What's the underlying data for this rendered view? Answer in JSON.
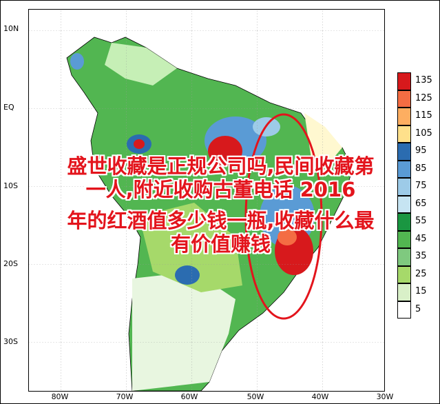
{
  "map": {
    "lat_labels": [
      "10N",
      "EQ",
      "10S",
      "20S",
      "30S"
    ],
    "lon_labels": [
      "80W",
      "70W",
      "60W",
      "50W",
      "40W",
      "30W"
    ]
  },
  "legend": {
    "levels": [
      "135",
      "125",
      "115",
      "105",
      "95",
      "85",
      "75",
      "65",
      "55",
      "45",
      "35",
      "25",
      "15",
      "5"
    ],
    "colors": [
      "#d7191c",
      "#f46d43",
      "#fdae61",
      "#fee08b",
      "#2b6cb0",
      "#5a9bd5",
      "#9dcbe8",
      "#c6e4f2",
      "#1a9641",
      "#52b651",
      "#7fc97f",
      "#a6d96a",
      "#d9f0c8",
      "#ffffff"
    ]
  },
  "overlay": {
    "line1": "盛世收藏是正规公司吗,民间收藏第",
    "line2": "一人,附近收购古董电话 2016",
    "line3": "年的红酒值多少钱一瓶,收藏什么最",
    "line4": "有价值赚钱"
  },
  "annotation": {
    "ellipse_color": "#e3141c"
  }
}
